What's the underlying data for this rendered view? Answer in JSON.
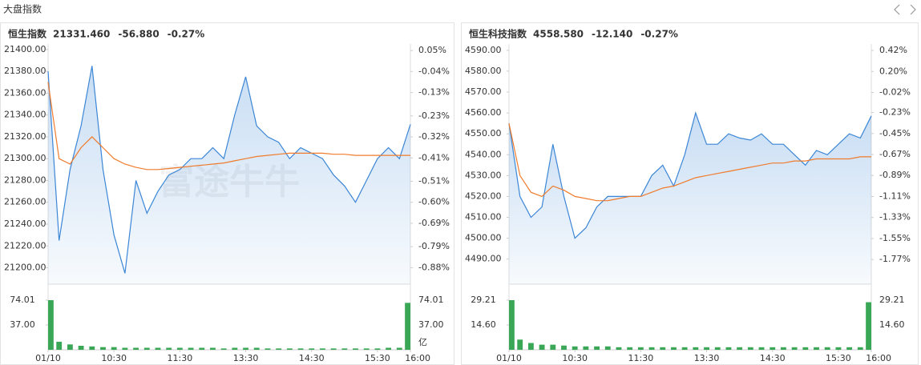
{
  "header": {
    "title": "大盘指数"
  },
  "chart_data": [
    {
      "type": "line",
      "name": "恒生指数",
      "price": "21331.460",
      "change": "-56.880",
      "change_pct": "-0.27%",
      "up_color": "#e8313a",
      "down_color": "#1a9e4b",
      "watermark": "富途牛牛",
      "x": [
        0,
        10,
        20,
        30,
        40,
        50,
        60,
        70,
        80,
        90,
        100,
        110,
        120,
        130,
        140,
        150,
        160,
        170,
        180,
        190,
        200,
        210,
        220,
        230,
        240,
        250,
        260,
        270,
        280,
        290,
        300,
        310,
        320,
        330
      ],
      "xlim": [
        0,
        330
      ],
      "xticks": [
        {
          "value": 0,
          "label": "01/10"
        },
        {
          "value": 60,
          "label": "10:30"
        },
        {
          "value": 120,
          "label": "11:30"
        },
        {
          "value": 180,
          "label": "13:30"
        },
        {
          "value": 240,
          "label": "14:30"
        },
        {
          "value": 300,
          "label": "15:30"
        },
        {
          "value": 330,
          "label": "16:00"
        }
      ],
      "ylim": [
        21185,
        21405
      ],
      "yticks": [
        {
          "value": 21400,
          "label": "21400.00"
        },
        {
          "value": 21380,
          "label": "21380.00"
        },
        {
          "value": 21360,
          "label": "21360.00"
        },
        {
          "value": 21340,
          "label": "21340.00"
        },
        {
          "value": 21320,
          "label": "21320.00"
        },
        {
          "value": 21300,
          "label": "21300.00"
        },
        {
          "value": 21280,
          "label": "21280.00"
        },
        {
          "value": 21260,
          "label": "21260.00"
        },
        {
          "value": 21240,
          "label": "21240.00"
        },
        {
          "value": 21220,
          "label": "21220.00"
        },
        {
          "value": 21200,
          "label": "21200.00"
        }
      ],
      "y2lim": [
        -0.9507,
        0.0779
      ],
      "y2ticks": [
        {
          "value": 0.05,
          "label": "0.05%"
        },
        {
          "value": -0.04,
          "label": "-0.04%"
        },
        {
          "value": -0.13,
          "label": "-0.13%"
        },
        {
          "value": -0.23,
          "label": "-0.23%"
        },
        {
          "value": -0.32,
          "label": "-0.32%"
        },
        {
          "value": -0.41,
          "label": "-0.41%"
        },
        {
          "value": -0.51,
          "label": "-0.51%"
        },
        {
          "value": -0.6,
          "label": "-0.60%"
        },
        {
          "value": -0.69,
          "label": "-0.69%"
        },
        {
          "value": -0.79,
          "label": "-0.79%"
        },
        {
          "value": -0.88,
          "label": "-0.88%"
        }
      ],
      "series": [
        {
          "color": "#3b86d6",
          "values": [
            21380,
            21225,
            21290,
            21330,
            21385,
            21290,
            21230,
            21195,
            21280,
            21250,
            21270,
            21285,
            21290,
            21300,
            21300,
            21310,
            21300,
            21340,
            21375,
            21330,
            21320,
            21315,
            21300,
            21310,
            21305,
            21300,
            21285,
            21275,
            21260,
            21280,
            21300,
            21310,
            21300,
            21331.46
          ]
        },
        {
          "color": "#f07b2c",
          "values": [
            21370,
            21300,
            21295,
            21310,
            21320,
            21310,
            21300,
            21295,
            21292,
            21290,
            21290,
            21291,
            21292,
            21293,
            21294,
            21295,
            21296,
            21298,
            21300,
            21302,
            21303,
            21304,
            21305,
            21305,
            21305,
            21305,
            21304,
            21304,
            21303,
            21303,
            21303,
            21303,
            21303,
            21303
          ]
        }
      ],
      "volume": {
        "color": "#3aa757",
        "unit": "亿",
        "ylim": [
          0,
          74.01
        ],
        "yticks": [
          {
            "value": 74.01,
            "label": "74.01"
          },
          {
            "value": 37,
            "label": "37.00"
          }
        ],
        "values": [
          74.01,
          12,
          8,
          6,
          5,
          4,
          4,
          3,
          3,
          3,
          3,
          3,
          3,
          3,
          3,
          3,
          2,
          3,
          3,
          3,
          2,
          2,
          2,
          2,
          2,
          2,
          2,
          2,
          2,
          2,
          2,
          3,
          3,
          70
        ]
      }
    },
    {
      "type": "line",
      "name": "恒生科技指数",
      "price": "4558.580",
      "change": "-12.140",
      "change_pct": "-0.27%",
      "up_color": "#e8313a",
      "down_color": "#1a9e4b",
      "x": [
        0,
        10,
        20,
        30,
        40,
        50,
        60,
        70,
        80,
        90,
        100,
        110,
        120,
        130,
        140,
        150,
        160,
        170,
        180,
        190,
        200,
        210,
        220,
        230,
        240,
        250,
        260,
        270,
        280,
        290,
        300,
        310,
        320,
        330
      ],
      "xlim": [
        0,
        330
      ],
      "xticks": [
        {
          "value": 0,
          "label": "01/10"
        },
        {
          "value": 60,
          "label": "10:30"
        },
        {
          "value": 120,
          "label": "11:30"
        },
        {
          "value": 180,
          "label": "13:30"
        },
        {
          "value": 240,
          "label": "14:30"
        },
        {
          "value": 300,
          "label": "15:30"
        },
        {
          "value": 330,
          "label": "16:00"
        }
      ],
      "ylim": [
        4478,
        4593
      ],
      "yticks": [
        {
          "value": 4590,
          "label": "4590.00"
        },
        {
          "value": 4580,
          "label": "4580.00"
        },
        {
          "value": 4570,
          "label": "4570.00"
        },
        {
          "value": 4560,
          "label": "4560.00"
        },
        {
          "value": 4550,
          "label": "4550.00"
        },
        {
          "value": 4540,
          "label": "4540.00"
        },
        {
          "value": 4530,
          "label": "4530.00"
        },
        {
          "value": 4520,
          "label": "4520.00"
        },
        {
          "value": 4510,
          "label": "4510.00"
        },
        {
          "value": 4500,
          "label": "4500.00"
        },
        {
          "value": 4490,
          "label": "4490.00"
        }
      ],
      "y2lim": [
        -2.0285,
        0.4875
      ],
      "y2ticks": [
        {
          "value": 0.42,
          "label": "0.42%"
        },
        {
          "value": 0.2,
          "label": "0.20%"
        },
        {
          "value": -0.02,
          "label": "-0.02%"
        },
        {
          "value": -0.23,
          "label": "-0.23%"
        },
        {
          "value": -0.45,
          "label": "-0.45%"
        },
        {
          "value": -0.67,
          "label": "-0.67%"
        },
        {
          "value": -0.89,
          "label": "-0.89%"
        },
        {
          "value": -1.11,
          "label": "-1.11%"
        },
        {
          "value": -1.33,
          "label": "-1.33%"
        },
        {
          "value": -1.55,
          "label": "-1.55%"
        },
        {
          "value": -1.77,
          "label": "-1.77%"
        }
      ],
      "series": [
        {
          "color": "#3b86d6",
          "values": [
            4555,
            4520,
            4510,
            4515,
            4545,
            4520,
            4500,
            4505,
            4515,
            4520,
            4520,
            4520,
            4520,
            4530,
            4535,
            4525,
            4540,
            4560,
            4545,
            4545,
            4550,
            4548,
            4547,
            4550,
            4545,
            4545,
            4540,
            4535,
            4542,
            4540,
            4545,
            4550,
            4548,
            4558.58
          ]
        },
        {
          "color": "#f07b2c",
          "values": [
            4555,
            4530,
            4522,
            4520,
            4525,
            4523,
            4520,
            4519,
            4518,
            4518,
            4519,
            4520,
            4520,
            4522,
            4524,
            4525,
            4527,
            4529,
            4530,
            4531,
            4532,
            4533,
            4534,
            4535,
            4536,
            4536,
            4537,
            4537,
            4538,
            4538,
            4538,
            4538,
            4539,
            4539
          ]
        }
      ],
      "volume": {
        "color": "#3aa757",
        "ylim": [
          0,
          29.21
        ],
        "yticks": [
          {
            "value": 29.21,
            "label": "29.21"
          },
          {
            "value": 14.6,
            "label": "14.60"
          }
        ],
        "values": [
          29.21,
          6,
          4,
          3,
          3,
          2.5,
          2,
          2,
          2,
          2,
          1.5,
          1.5,
          1.5,
          1.5,
          1.5,
          1.5,
          1.5,
          1.5,
          1.5,
          1.5,
          1.5,
          1.5,
          1.5,
          1.5,
          1.5,
          1.5,
          1.5,
          1.5,
          1.5,
          1.5,
          1.5,
          1.5,
          1.5,
          28
        ]
      }
    }
  ]
}
